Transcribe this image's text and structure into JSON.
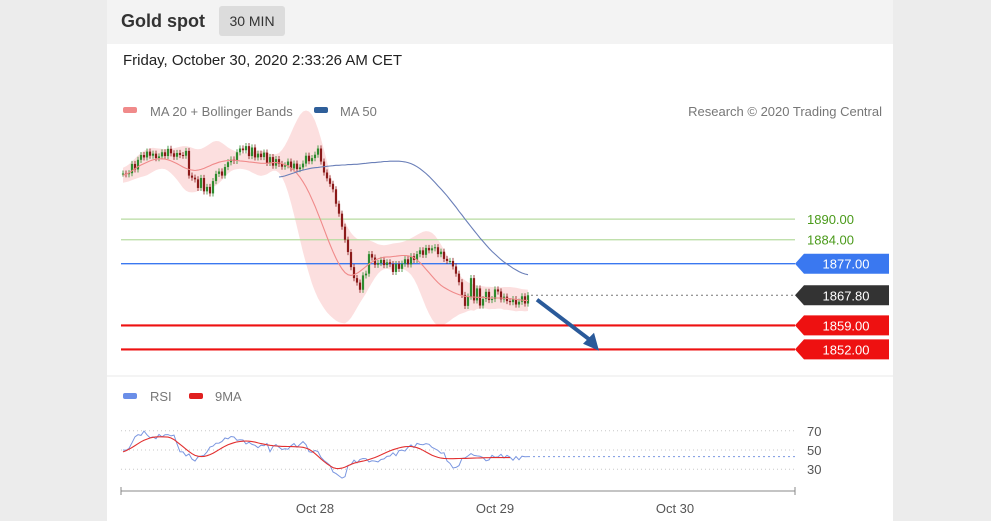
{
  "header": {
    "title": "Gold spot",
    "timeframe": "30 MIN"
  },
  "timestamp": "Friday, October 30, 2020 2:33:26 AM CET",
  "credit": "Research © 2020 Trading Central",
  "legend_main": [
    {
      "label": "MA 20 + Bollinger Bands",
      "color": "#f08a8a"
    },
    {
      "label": "MA 50",
      "color": "#2f5f9a"
    }
  ],
  "legend_rsi": [
    {
      "label": "RSI",
      "color": "#6a8ee8"
    },
    {
      "label": "9MA",
      "color": "#e02020"
    }
  ],
  "colors": {
    "candle_up": "#2e8b2e",
    "candle_down": "#8b1a1a",
    "target_green": "#4a9a1a",
    "pivot_blue": "#3a78f0",
    "support_red": "#ee1111",
    "price_tag": "#333333",
    "arrow": "#2a5a9a"
  },
  "chart_data": {
    "type": "line",
    "main_panel": {
      "ylim": [
        1846,
        1916
      ],
      "x_ticks": [
        "Oct 28",
        "Oct 29",
        "Oct 30"
      ],
      "x_tick_index": [
        64,
        124,
        184
      ],
      "price_series": [
        1903.3,
        1903.1,
        1903.4,
        1906.1,
        1904.5,
        1907.3,
        1908.7,
        1908,
        1909.7,
        1908.5,
        1909.1,
        1907.8,
        1908.3,
        1909.5,
        1908.4,
        1910.5,
        1909.2,
        1908.2,
        1909.3,
        1908.7,
        1908.5,
        1909.9,
        1902.7,
        1902.1,
        1901.6,
        1899.1,
        1902,
        1898.1,
        1899.4,
        1897.5,
        1901.1,
        1903.2,
        1903.9,
        1902.7,
        1905.2,
        1906.6,
        1907.4,
        1907,
        1909.5,
        1910.6,
        1910.1,
        1911.3,
        1908.4,
        1910.9,
        1908,
        1909.1,
        1908.1,
        1909.4,
        1906.4,
        1908.1,
        1905.6,
        1907.5,
        1906.1,
        1905.3,
        1905.7,
        1906.8,
        1904.8,
        1906.2,
        1904.6,
        1905.1,
        1906.2,
        1908.5,
        1906.9,
        1907.8,
        1908.8,
        1910.6,
        1906.8,
        1903.6,
        1901.9,
        1900.3,
        1898.7,
        1894.5,
        1891.6,
        1887.8,
        1884,
        1880.4,
        1876,
        1872.8,
        1871.5,
        1869.4,
        1873.6,
        1874.1,
        1879.8,
        1878.8,
        1876.7,
        1877.2,
        1878.1,
        1876.6,
        1877.4,
        1876.9,
        1874.6,
        1876.9,
        1875.5,
        1877,
        1878.3,
        1876.8,
        1879.2,
        1878.1,
        1879.8,
        1880.9,
        1879.6,
        1881.6,
        1880.9,
        1881.5,
        1881.8,
        1879.8,
        1880.5,
        1878.4,
        1877.8,
        1877.8,
        1876.2,
        1874.1,
        1871.6,
        1867.9,
        1864.7,
        1867.4,
        1872.8,
        1866.3,
        1869.8,
        1864.8,
        1866.7,
        1868.8,
        1866.4,
        1866.7,
        1869.5,
        1868.9,
        1866.6,
        1867.4,
        1866.1,
        1865.8,
        1866.7,
        1865.1,
        1865.9,
        1867.5,
        1865.4,
        1867.8
      ],
      "ma20": [
        1902.8,
        1903.1,
        1903.5,
        1904.1,
        1904.7,
        1905.3,
        1905.8,
        1906.2,
        1906.6,
        1907,
        1907.3,
        1907.5,
        1907.6,
        1907.6,
        1907.5,
        1907.3,
        1907,
        1906.6,
        1906.2,
        1905.7,
        1905.2,
        1904.8,
        1904.5,
        1904.3,
        1904.2,
        1904.3,
        1904.5,
        1904.8,
        1905.2,
        1905.6,
        1906,
        1906.3,
        1906.6,
        1906.8,
        1907,
        1907.1,
        1907.2,
        1907.2,
        1907.1,
        1907,
        1906.9,
        1906.8,
        1906.7,
        1906.6,
        1906.5,
        1906.4,
        1906.3,
        1906.3,
        1906.3,
        1906.4,
        1906.5,
        1906.5,
        1906.4,
        1906.2,
        1905.9,
        1905.5,
        1904.9,
        1904.2,
        1903.3,
        1902.2,
        1900.9,
        1899.4,
        1897.7,
        1895.8,
        1893.8,
        1891.6,
        1889.4,
        1887.1,
        1884.8,
        1882.6,
        1880.5,
        1878.6,
        1876.9,
        1875.5,
        1874.4,
        1873.8,
        1873.6,
        1873.8,
        1874.2,
        1874.8,
        1875.5,
        1876.2,
        1876.9,
        1877.5,
        1878,
        1878.4,
        1878.7,
        1878.9,
        1879,
        1879,
        1879.1,
        1879.2,
        1879.3,
        1879.4,
        1879.4,
        1879.3,
        1879.1,
        1878.7,
        1878.1,
        1877.3,
        1876.4,
        1875.4,
        1874.4,
        1873.4,
        1872.4,
        1871.5,
        1870.7,
        1870.1,
        1869.6,
        1869.1,
        1868.7,
        1868.3,
        1868,
        1867.7,
        1867.5,
        1867.4,
        1867.3,
        1867.3,
        1867.2,
        1867.2,
        1867.2,
        1867.1,
        1867,
        1867,
        1867,
        1867,
        1867,
        1866.9,
        1866.9,
        1866.8,
        1866.7,
        1866.6,
        1866.5,
        1866.4,
        1866.3,
        1866.3
      ],
      "bb_upper": [
        1905,
        1905.4,
        1906,
        1906.8,
        1907.7,
        1908.6,
        1909.3,
        1909.9,
        1910.4,
        1910.7,
        1910.8,
        1910.7,
        1910.6,
        1910.5,
        1910.4,
        1910.5,
        1910.6,
        1910.7,
        1910.9,
        1911.1,
        1911.3,
        1911.3,
        1911.1,
        1910.8,
        1910.5,
        1910.4,
        1910.5,
        1910.9,
        1911.4,
        1912,
        1912.6,
        1912.8,
        1912.7,
        1912.2,
        1911.6,
        1910.9,
        1910.4,
        1910,
        1909.6,
        1909.3,
        1909.2,
        1909.2,
        1909.3,
        1909.6,
        1909.8,
        1910,
        1910,
        1909.8,
        1909.5,
        1909.1,
        1908.9,
        1908.9,
        1909.3,
        1910.2,
        1911.5,
        1913.2,
        1915.1,
        1917.1,
        1918.9,
        1920.4,
        1921.4,
        1921.7,
        1921.4,
        1920.4,
        1918.7,
        1916.3,
        1913.4,
        1910.2,
        1906.8,
        1903.3,
        1899.9,
        1896.8,
        1893.9,
        1891.3,
        1889.2,
        1887.4,
        1886,
        1885,
        1884.3,
        1884,
        1884,
        1884,
        1883.8,
        1883.5,
        1883.1,
        1882.7,
        1882.5,
        1882.4,
        1882.5,
        1882.7,
        1882.9,
        1883,
        1883.1,
        1883.3,
        1883.6,
        1884,
        1884.4,
        1884.9,
        1885.4,
        1885.9,
        1886.3,
        1886.5,
        1886.4,
        1886,
        1885.2,
        1884,
        1882.6,
        1881,
        1879.4,
        1877.8,
        1876.3,
        1875,
        1873.8,
        1872.9,
        1872.2,
        1871.6,
        1871.2,
        1870.9,
        1870.6,
        1870.5,
        1870.4,
        1870.3,
        1870.3,
        1870.2,
        1870.2,
        1870.1,
        1870.1,
        1870.2,
        1870.2,
        1870.2,
        1870.1,
        1870,
        1869.8,
        1869.6,
        1869.5,
        1869.4
      ],
      "bb_lower": [
        1900.6,
        1900.8,
        1901,
        1901.4,
        1901.7,
        1902,
        1902.3,
        1902.5,
        1902.8,
        1903.3,
        1903.8,
        1904.3,
        1904.6,
        1904.7,
        1904.6,
        1904.1,
        1903.4,
        1902.5,
        1901.5,
        1900.3,
        1899.1,
        1898.3,
        1897.9,
        1897.8,
        1897.9,
        1898.2,
        1898.5,
        1898.7,
        1899,
        1899.2,
        1899.4,
        1899.8,
        1900.5,
        1901.4,
        1902.4,
        1903.3,
        1904,
        1904.4,
        1904.6,
        1904.7,
        1904.6,
        1904.4,
        1904.1,
        1903.6,
        1903.2,
        1902.8,
        1902.6,
        1902.8,
        1903.1,
        1903.7,
        1904.1,
        1904.1,
        1903.5,
        1902.2,
        1900.3,
        1897.8,
        1894.7,
        1891.3,
        1887.7,
        1884,
        1880.4,
        1877.1,
        1874.1,
        1871.2,
        1868.9,
        1866.9,
        1865.4,
        1864,
        1862.8,
        1861.9,
        1861.1,
        1860.4,
        1859.9,
        1859.7,
        1859.6,
        1860.2,
        1861.2,
        1862.6,
        1864.1,
        1865.6,
        1867,
        1868.4,
        1870,
        1871.5,
        1872.9,
        1874.1,
        1874.9,
        1875.4,
        1875.5,
        1875.3,
        1875.3,
        1875.4,
        1875.5,
        1875.5,
        1875.2,
        1874.6,
        1873.8,
        1872.5,
        1870.8,
        1868.7,
        1866.5,
        1864.3,
        1862.4,
        1860.8,
        1859.6,
        1859,
        1858.8,
        1859.2,
        1859.8,
        1860.4,
        1861.1,
        1861.6,
        1862.2,
        1862.5,
        1862.8,
        1863.2,
        1863.4,
        1863.3,
        1863.8,
        1863.9,
        1864,
        1863.9,
        1863.7,
        1863.8,
        1863.8,
        1863.9,
        1863.9,
        1863.6,
        1863.6,
        1863.4,
        1863.3,
        1863.1,
        1863.2,
        1863.2,
        1863.1,
        1863.2
      ],
      "ma50": [
        1902.3,
        1902.4,
        1902.6,
        1902.9,
        1903.2,
        1903.5,
        1903.8,
        1904.1,
        1904.3,
        1904.5,
        1904.7,
        1904.9,
        1905,
        1905.1,
        1905.2,
        1905.3,
        1905.4,
        1905.5,
        1905.6,
        1905.7,
        1905.7,
        1905.8,
        1905.8,
        1905.9,
        1905.9,
        1906,
        1906,
        1906.1,
        1906.2,
        1906.3,
        1906.4,
        1906.5,
        1906.5,
        1906.6,
        1906.7,
        1906.8,
        1906.8,
        1906.9,
        1906.9,
        1906.9,
        1906.9,
        1906.8,
        1906.7,
        1906.5,
        1906.2,
        1905.8,
        1905.3,
        1904.7,
        1904,
        1903.3,
        1902.5,
        1901.6,
        1900.7,
        1899.7,
        1898.8,
        1897.8,
        1896.8,
        1895.7,
        1894.6,
        1893.5,
        1892.3,
        1891.2,
        1890,
        1888.9,
        1887.8,
        1886.7,
        1885.6,
        1884.5,
        1883.5,
        1882.5,
        1881.5,
        1880.6,
        1879.8,
        1879,
        1878.2,
        1877.5,
        1876.9,
        1876.3,
        1875.7,
        1875.2,
        1874.7,
        1874.3,
        1874,
        1873.8
      ],
      "ma50_start": 52,
      "levels": [
        {
          "label": "1890.00",
          "value": 1890,
          "kind": "target"
        },
        {
          "label": "1884.00",
          "value": 1884,
          "kind": "target"
        },
        {
          "label": "1877.00",
          "value": 1877,
          "kind": "pivot"
        },
        {
          "label": "1867.80",
          "value": 1867.8,
          "kind": "last"
        },
        {
          "label": "1859.00",
          "value": 1859,
          "kind": "support"
        },
        {
          "label": "1852.00",
          "value": 1852,
          "kind": "support"
        }
      ],
      "forecast_arrow": {
        "from_index": 138,
        "from_value": 1866.5,
        "to_index": 158,
        "to_value": 1852.5
      }
    },
    "rsi_panel": {
      "ylim": [
        0,
        100
      ],
      "y_ticks": [
        70,
        50,
        30
      ],
      "rsi": [
        50,
        49.7,
        51.7,
        57.5,
        63.7,
        65.9,
        65.2,
        69.7,
        65.8,
        62.8,
        63.6,
        61.8,
        66.1,
        63.6,
        65.9,
        66,
        64.7,
        65.5,
        56.5,
        48.1,
        48,
        43.9,
        45.9,
        40.5,
        38.4,
        42.8,
        43.6,
        44.5,
        48,
        53.1,
        54.1,
        57.1,
        57.2,
        58.9,
        62.5,
        61.7,
        64.1,
        63.5,
        60.1,
        60.7,
        60.4,
        56.3,
        58.1,
        55.8,
        54.9,
        52.4,
        55,
        54.5,
        56.8,
        48.2,
        53.6,
        55.6,
        52.9,
        50.5,
        51.2,
        50.8,
        54.4,
        56.7,
        52.9,
        55.8,
        58.8,
        55.6,
        48.2,
        47.5,
        49.6,
        48.2,
        42.3,
        39.1,
        36.7,
        34.1,
        27.1,
        25.4,
        23,
        20.7,
        22.2,
        33.9,
        34.8,
        39.5,
        36.6,
        40.2,
        41.1,
        40.9,
        37.6,
        38.8,
        38.4,
        37.6,
        40.1,
        40.7,
        43.3,
        43.8,
        47.1,
        44.1,
        49.4,
        49.9,
        48.9,
        52.8,
        55.3,
        52.5,
        56.9,
        55.8,
        55.5,
        56.7,
        55.9,
        52.8,
        51.3,
        49.5,
        46.7,
        47.1,
        38.6,
        36,
        31.3,
        31.9,
        33.8,
        41.2,
        41.8,
        43.9,
        46.2,
        44.4,
        43.9,
        43.5,
        42.2,
        38.8,
        39.7,
        44.5,
        42.4,
        42.8,
        45.5,
        41.7,
        44.4,
        42.6,
        39.4,
        43.2,
        39.8,
        43.5,
        42.9,
        43.1
      ],
      "ma9": [
        48,
        49.3,
        50.8,
        52.6,
        54.6,
        56.6,
        58.5,
        60.1,
        61.4,
        62.5,
        63.2,
        63.6,
        63.7,
        63.7,
        63.6,
        63.4,
        62.5,
        60.8,
        58.4,
        55.9,
        53.4,
        50.8,
        48.3,
        46.1,
        44.4,
        43.5,
        43.1,
        43.3,
        44.1,
        45.2,
        46.7,
        48.4,
        50.3,
        52.2,
        54,
        55.5,
        56.6,
        57.6,
        58.4,
        58.9,
        59.2,
        59.4,
        59.2,
        58.8,
        58.2,
        57.4,
        56.7,
        56,
        55.4,
        54.9,
        54.5,
        54.2,
        54,
        53.8,
        53.7,
        53.6,
        53.5,
        53.4,
        53.3,
        53.1,
        52.8,
        52,
        50.7,
        48.7,
        46.3,
        43.5,
        40.6,
        38,
        35.6,
        33.5,
        31.7,
        30.8,
        30.6,
        31.1,
        32.2,
        33.6,
        35,
        36.2,
        37.1,
        37.8,
        38.4,
        39.2,
        40.1,
        41.1,
        42.2,
        43.5,
        44.9,
        46.4,
        47.8,
        49.1,
        50.3,
        51.3,
        52.2,
        52.9,
        53.4,
        53.6,
        53.6,
        53.2,
        52.4,
        51.2,
        49.7,
        47.9,
        46.2,
        44.6,
        43.3,
        42.3,
        41.6,
        41.2,
        41,
        40.9,
        40.9,
        41,
        41.1,
        41.2,
        41.3,
        41.4,
        41.5,
        41.6,
        41.7,
        41.8,
        41.9,
        42,
        42,
        42.1,
        42.1,
        42.1,
        42.1,
        42.1,
        42.1,
        42.1
      ],
      "x_ticks": [
        "Oct 28",
        "Oct 29",
        "Oct 30"
      ]
    }
  }
}
